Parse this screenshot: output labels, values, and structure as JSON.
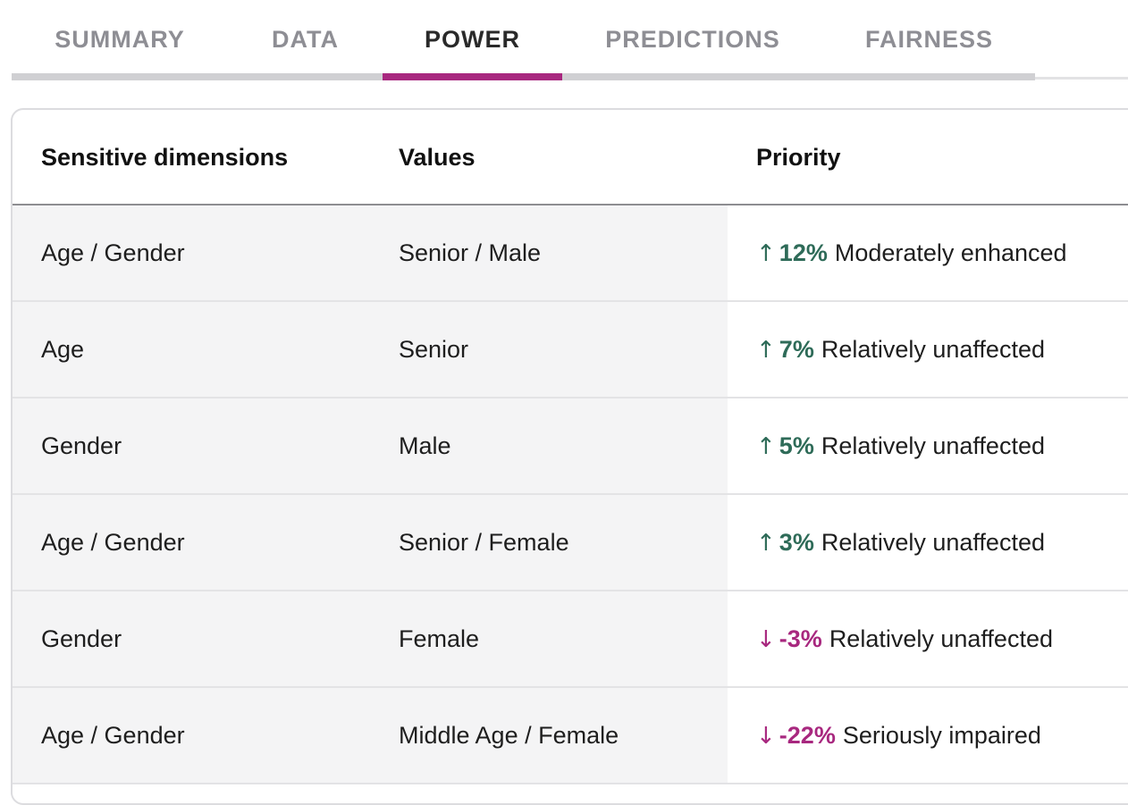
{
  "tabs": [
    {
      "label": "SUMMARY",
      "active": false
    },
    {
      "label": "DATA",
      "active": false
    },
    {
      "label": "POWER",
      "active": true
    },
    {
      "label": "PREDICTIONS",
      "active": false
    },
    {
      "label": "FAIRNESS",
      "active": false
    }
  ],
  "colors": {
    "accent": "#a8287f",
    "positive": "#2e6b58",
    "negative": "#a8287f"
  },
  "table": {
    "columns": [
      "Sensitive dimensions",
      "Values",
      "Priority"
    ],
    "rows": [
      {
        "dimension": "Age / Gender",
        "value": "Senior / Male",
        "arrow": "↑",
        "percent": "12%",
        "label": "Moderately enhanced",
        "direction": "up"
      },
      {
        "dimension": "Age",
        "value": "Senior",
        "arrow": "↑",
        "percent": "7%",
        "label": "Relatively unaffected",
        "direction": "up"
      },
      {
        "dimension": "Gender",
        "value": "Male",
        "arrow": "↑",
        "percent": "5%",
        "label": "Relatively unaffected",
        "direction": "up"
      },
      {
        "dimension": "Age / Gender",
        "value": "Senior / Female",
        "arrow": "↑",
        "percent": "3%",
        "label": "Relatively unaffected",
        "direction": "up"
      },
      {
        "dimension": "Gender",
        "value": "Female",
        "arrow": "↓",
        "percent": "-3%",
        "label": "Relatively unaffected",
        "direction": "down"
      },
      {
        "dimension": "Age / Gender",
        "value": "Middle Age / Female",
        "arrow": "↓",
        "percent": "-22%",
        "label": "Seriously impaired",
        "direction": "down"
      }
    ]
  }
}
